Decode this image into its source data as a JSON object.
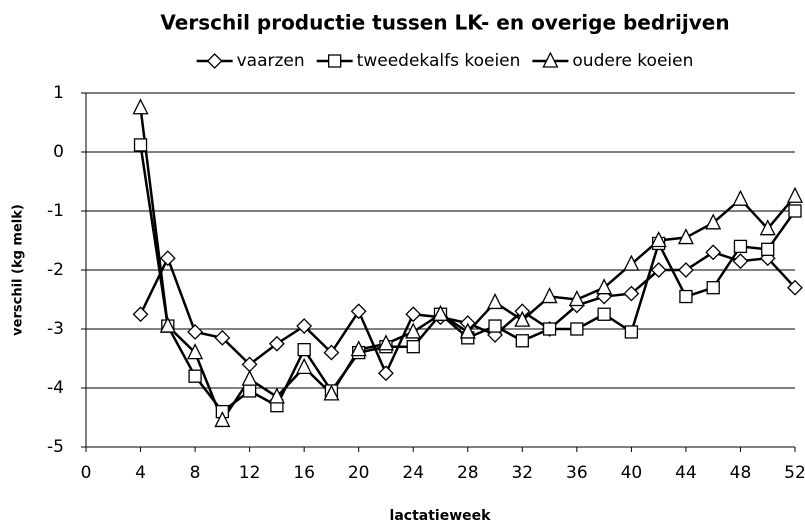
{
  "chart_data": {
    "type": "line",
    "title": "Verschil productie tussen LK- en overige bedrijven",
    "x_label": "lactatieweek",
    "y_label": "verschil (kg melk)",
    "x": [
      4,
      6,
      8,
      10,
      12,
      14,
      16,
      18,
      20,
      22,
      24,
      26,
      28,
      30,
      32,
      34,
      36,
      38,
      40,
      42,
      44,
      46,
      48,
      50,
      52
    ],
    "series": [
      {
        "name": "vaarzen",
        "color": "#000000",
        "marker": "diamond",
        "values": [
          -2.75,
          -1.8,
          -3.05,
          -3.15,
          -3.6,
          -3.25,
          -2.95,
          -3.4,
          -2.7,
          -3.75,
          -2.75,
          -2.8,
          -2.9,
          -3.1,
          -2.7,
          -3.0,
          -2.6,
          -2.45,
          -2.4,
          -2.0,
          -2.0,
          -1.7,
          -1.85,
          -1.8,
          -2.3
        ]
      },
      {
        "name": "tweedekalfs koeien",
        "color": "#000000",
        "marker": "square",
        "values": [
          0.12,
          -2.95,
          -3.8,
          -4.4,
          -4.05,
          -4.3,
          -3.35,
          -4.05,
          -3.4,
          -3.3,
          -3.3,
          -2.75,
          -3.15,
          -2.95,
          -3.2,
          -3.0,
          -3.0,
          -2.75,
          -3.05,
          -1.55,
          -2.45,
          -2.3,
          -1.6,
          -1.65,
          -1.0
        ]
      },
      {
        "name": "oudere koeien",
        "color": "#000000",
        "marker": "triangle",
        "values": [
          0.75,
          -2.95,
          -3.4,
          -4.55,
          -3.85,
          -4.15,
          -3.65,
          -4.1,
          -3.35,
          -3.25,
          -3.05,
          -2.75,
          -3.05,
          -2.55,
          -2.85,
          -2.45,
          -2.5,
          -2.3,
          -1.9,
          -1.5,
          -1.45,
          -1.2,
          -0.8,
          -1.3,
          -0.75
        ]
      }
    ],
    "xlim": [
      0,
      52
    ],
    "xticks": [
      0,
      4,
      8,
      12,
      16,
      20,
      24,
      28,
      32,
      36,
      40,
      44,
      48,
      52
    ],
    "ylim": [
      -5,
      1
    ],
    "yticks": [
      -5,
      -4,
      -3,
      -2,
      -1,
      0,
      1
    ],
    "grid": true,
    "legend": "top"
  }
}
